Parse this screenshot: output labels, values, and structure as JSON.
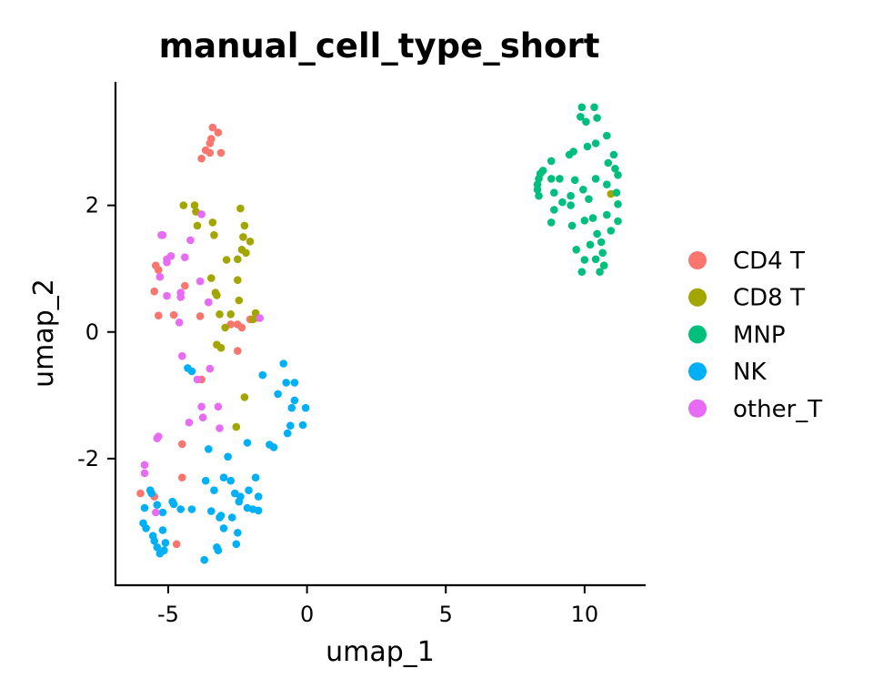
{
  "chart_data": {
    "type": "scatter",
    "title": "manual_cell_type_short",
    "xlabel": "umap_1",
    "ylabel": "umap_2",
    "xlim": [
      -6.9,
      12.2
    ],
    "ylim": [
      -4.0,
      3.95
    ],
    "xticks": [
      -5,
      0,
      5,
      10
    ],
    "xtick_labels": [
      "-5",
      "0",
      "5",
      "10"
    ],
    "yticks": [
      -2,
      0,
      2
    ],
    "ytick_labels": [
      "-2",
      "0",
      "2"
    ],
    "grid": false,
    "legend_position": "right",
    "series": [
      {
        "name": "CD4 T",
        "color": "#F8766D",
        "points": [
          [
            -3.4,
            3.23
          ],
          [
            -3.2,
            3.15
          ],
          [
            -3.45,
            3.05
          ],
          [
            -3.5,
            2.98
          ],
          [
            -3.65,
            2.87
          ],
          [
            -3.5,
            2.83
          ],
          [
            -3.8,
            2.74
          ],
          [
            -3.1,
            2.83
          ],
          [
            -5.45,
            1.05
          ],
          [
            -5.35,
            0.98
          ],
          [
            -4.4,
            0.73
          ],
          [
            -5.5,
            0.64
          ],
          [
            -5.35,
            0.26
          ],
          [
            -3.85,
            0.25
          ],
          [
            -2.75,
            0.12
          ],
          [
            -2.5,
            0.12
          ],
          [
            -1.85,
            0.22
          ],
          [
            -2.5,
            -0.3
          ],
          [
            -3.8,
            -0.75
          ],
          [
            -4.5,
            -1.77
          ],
          [
            -4.5,
            -2.3
          ],
          [
            -6.0,
            -2.55
          ],
          [
            -5.5,
            -2.6
          ],
          [
            -4.7,
            -3.35
          ],
          [
            -2.35,
            0.07
          ],
          [
            -2.05,
            0.2
          ],
          [
            -4.8,
            0.27
          ],
          [
            -3.55,
            0.47
          ]
        ]
      },
      {
        "name": "CD8 T",
        "color": "#A3A500",
        "points": [
          [
            -4.45,
            2.0
          ],
          [
            -4.05,
            2.0
          ],
          [
            -4.0,
            1.9
          ],
          [
            -2.4,
            1.95
          ],
          [
            -3.4,
            1.73
          ],
          [
            -2.25,
            1.68
          ],
          [
            -3.95,
            1.68
          ],
          [
            -3.35,
            1.53
          ],
          [
            -2.3,
            1.5
          ],
          [
            -2.05,
            1.43
          ],
          [
            -2.35,
            1.3
          ],
          [
            -2.2,
            1.25
          ],
          [
            -2.9,
            1.14
          ],
          [
            -2.5,
            1.15
          ],
          [
            -3.45,
            0.85
          ],
          [
            -2.5,
            0.82
          ],
          [
            -3.3,
            0.62
          ],
          [
            -3.25,
            0.58
          ],
          [
            -2.45,
            0.5
          ],
          [
            -3.15,
            0.28
          ],
          [
            -2.75,
            0.28
          ],
          [
            -1.85,
            0.3
          ],
          [
            -1.95,
            0.2
          ],
          [
            -2.95,
            0.07
          ],
          [
            -3.25,
            -0.2
          ],
          [
            -3.1,
            -0.25
          ],
          [
            -2.25,
            -1.03
          ],
          [
            -2.55,
            -1.5
          ],
          [
            10.95,
            2.18
          ]
        ]
      },
      {
        "name": "MNP",
        "color": "#00BF7D",
        "points": [
          [
            9.9,
            3.55
          ],
          [
            10.35,
            3.55
          ],
          [
            9.85,
            3.4
          ],
          [
            10.45,
            3.38
          ],
          [
            10.05,
            3.32
          ],
          [
            10.8,
            3.1
          ],
          [
            10.4,
            2.98
          ],
          [
            10.1,
            2.93
          ],
          [
            9.6,
            2.85
          ],
          [
            9.45,
            2.8
          ],
          [
            11.05,
            2.8
          ],
          [
            10.85,
            2.67
          ],
          [
            8.8,
            2.7
          ],
          [
            11.1,
            2.58
          ],
          [
            8.5,
            2.55
          ],
          [
            8.4,
            2.5
          ],
          [
            11.2,
            2.48
          ],
          [
            8.35,
            2.42
          ],
          [
            9.1,
            2.42
          ],
          [
            8.8,
            2.42
          ],
          [
            9.65,
            2.4
          ],
          [
            10.4,
            2.42
          ],
          [
            8.3,
            2.33
          ],
          [
            8.3,
            2.25
          ],
          [
            10.8,
            2.33
          ],
          [
            9.95,
            2.25
          ],
          [
            8.9,
            2.2
          ],
          [
            8.35,
            2.15
          ],
          [
            9.5,
            2.15
          ],
          [
            10.15,
            2.1
          ],
          [
            11.15,
            2.2
          ],
          [
            11.2,
            2.02
          ],
          [
            9.5,
            2.0
          ],
          [
            9.2,
            2.05
          ],
          [
            8.9,
            1.93
          ],
          [
            10.8,
            1.85
          ],
          [
            10.3,
            1.8
          ],
          [
            11.2,
            1.75
          ],
          [
            10.0,
            1.76
          ],
          [
            8.8,
            1.73
          ],
          [
            9.55,
            1.68
          ],
          [
            10.95,
            1.6
          ],
          [
            10.45,
            1.55
          ],
          [
            10.6,
            1.42
          ],
          [
            10.2,
            1.38
          ],
          [
            9.7,
            1.3
          ],
          [
            10.65,
            1.25
          ],
          [
            10.0,
            1.14
          ],
          [
            10.4,
            1.15
          ],
          [
            10.7,
            1.05
          ],
          [
            9.9,
            0.95
          ],
          [
            10.55,
            0.95
          ]
        ]
      },
      {
        "name": "NK",
        "color": "#00B0F6",
        "points": [
          [
            -0.85,
            -0.5
          ],
          [
            -1.6,
            -0.68
          ],
          [
            -4.3,
            -0.57
          ],
          [
            -4.15,
            -0.62
          ],
          [
            -0.75,
            -0.8
          ],
          [
            -0.45,
            -0.8
          ],
          [
            -1.05,
            -0.98
          ],
          [
            -0.45,
            -1.08
          ],
          [
            -0.55,
            -1.2
          ],
          [
            -0.05,
            -1.2
          ],
          [
            -0.6,
            -1.48
          ],
          [
            -0.15,
            -1.47
          ],
          [
            -0.7,
            -1.6
          ],
          [
            -1.35,
            -1.78
          ],
          [
            -2.15,
            -1.75
          ],
          [
            -1.2,
            -1.82
          ],
          [
            -3.55,
            -1.85
          ],
          [
            -2.85,
            -1.97
          ],
          [
            -1.85,
            -2.3
          ],
          [
            -3.0,
            -2.3
          ],
          [
            -2.75,
            -2.35
          ],
          [
            -3.65,
            -2.35
          ],
          [
            -3.35,
            -2.5
          ],
          [
            -2.6,
            -2.55
          ],
          [
            -2.4,
            -2.6
          ],
          [
            -2.1,
            -2.5
          ],
          [
            -1.75,
            -2.6
          ],
          [
            -2.45,
            -2.68
          ],
          [
            -5.65,
            -2.5
          ],
          [
            -5.6,
            -2.55
          ],
          [
            -5.4,
            -2.73
          ],
          [
            -4.85,
            -2.68
          ],
          [
            -4.8,
            -2.72
          ],
          [
            -4.55,
            -2.8
          ],
          [
            -4.15,
            -2.8
          ],
          [
            -2.15,
            -2.78
          ],
          [
            -1.95,
            -2.8
          ],
          [
            -1.75,
            -2.82
          ],
          [
            -3.45,
            -2.83
          ],
          [
            -3.1,
            -2.9
          ],
          [
            -3.15,
            -2.93
          ],
          [
            -2.7,
            -2.93
          ],
          [
            -5.85,
            -2.78
          ],
          [
            -5.2,
            -2.85
          ],
          [
            -3.0,
            -3.1
          ],
          [
            -2.5,
            -3.17
          ],
          [
            -5.9,
            -3.02
          ],
          [
            -5.8,
            -3.1
          ],
          [
            -5.2,
            -3.13
          ],
          [
            -5.5,
            -3.3
          ],
          [
            -5.4,
            -3.4
          ],
          [
            -5.15,
            -3.45
          ],
          [
            -3.25,
            -3.4
          ],
          [
            -3.2,
            -3.45
          ],
          [
            -2.55,
            -3.35
          ],
          [
            -3.7,
            -3.6
          ],
          [
            -5.3,
            -3.5
          ],
          [
            -5.55,
            -3.22
          ],
          [
            -5.1,
            -3.33
          ]
        ]
      },
      {
        "name": "other_T",
        "color": "#E76BF3",
        "points": [
          [
            -3.8,
            1.86
          ],
          [
            -5.2,
            1.53
          ],
          [
            -5.25,
            1.53
          ],
          [
            -4.2,
            1.45
          ],
          [
            -4.9,
            1.2
          ],
          [
            -5.05,
            1.15
          ],
          [
            -5.05,
            1.1
          ],
          [
            -4.4,
            1.18
          ],
          [
            -5.3,
            0.87
          ],
          [
            -4.55,
            0.62
          ],
          [
            -4.55,
            0.55
          ],
          [
            -3.85,
            0.8
          ],
          [
            -3.55,
            0.47
          ],
          [
            -5.05,
            0.57
          ],
          [
            -4.6,
            0.15
          ],
          [
            -1.7,
            0.22
          ],
          [
            -4.5,
            -0.38
          ],
          [
            -3.5,
            -0.58
          ],
          [
            -3.95,
            -0.75
          ],
          [
            -3.8,
            -1.18
          ],
          [
            -3.2,
            -1.18
          ],
          [
            -3.75,
            -1.35
          ],
          [
            -4.25,
            -1.43
          ],
          [
            -3.15,
            -1.52
          ],
          [
            -5.35,
            -1.65
          ],
          [
            -5.4,
            -1.68
          ],
          [
            -5.85,
            -2.1
          ],
          [
            -5.85,
            -2.23
          ],
          [
            -5.45,
            -2.85
          ]
        ]
      }
    ]
  }
}
